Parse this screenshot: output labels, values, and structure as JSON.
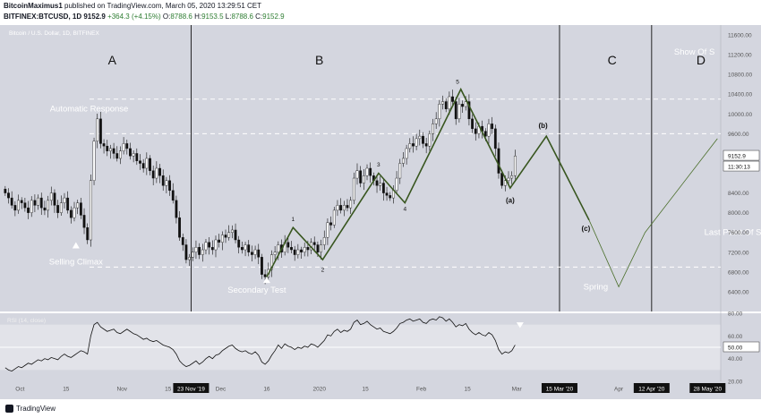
{
  "header": {
    "author": "BitcoinMaximus1",
    "published_text": "published on TradingView.com, March 05, 2020 13:29:51 CET",
    "symbol": "BITFINEX:BTCUSD, 1D",
    "last": "9152.9",
    "change": "+364.3 (+4.15%)",
    "o_label": "O:",
    "o_value": "8788.6",
    "h_label": "H:",
    "h_value": "9153.5",
    "l_label": "L:",
    "l_value": "8788.6",
    "c_label": "C:",
    "c_value": "9152.9"
  },
  "chart_title": "Bitcoin / U.S. Dollar, 1D, BITFINEX",
  "rsi_label": "RSI (14, close)",
  "footer": {
    "brand": "TradingView"
  },
  "colors": {
    "chart_bg": "#d4d6df",
    "wave_line": "#38561f",
    "candle": "#111111",
    "dashed": "#ffffff",
    "text_light": "#ffffff"
  },
  "chart_data": [
    {
      "type": "candlestick",
      "y_axis": {
        "min": 6000,
        "max": 11800,
        "ticks": [
          6400,
          6800,
          7200,
          7600,
          8000,
          8400,
          9200,
          9600,
          10000,
          10400,
          10800,
          11200,
          11600
        ],
        "tick_labels": [
          "6400.00",
          "6800.00",
          "7200.00",
          "7600.00",
          "8000.00",
          "8400.00",
          "9200.00",
          "9600.00",
          "10000.00",
          "10400.00",
          "10800.00",
          "11200.00",
          "11600.00"
        ]
      },
      "price_label": "9152.9",
      "time_label": "11:30:13",
      "x_ticks": [
        {
          "day": 5,
          "label": "Oct"
        },
        {
          "day": 19,
          "label": "15"
        },
        {
          "day": 36,
          "label": "Nov"
        },
        {
          "day": 50,
          "label": "15"
        },
        {
          "day": 57,
          "label": "23 Nov '19"
        },
        {
          "day": 66,
          "label": "Dec"
        },
        {
          "day": 80,
          "label": "16"
        },
        {
          "day": 96,
          "label": "2020"
        },
        {
          "day": 110,
          "label": "15"
        },
        {
          "day": 127,
          "label": "Feb"
        },
        {
          "day": 141,
          "label": "15"
        },
        {
          "day": 156,
          "label": "Mar"
        },
        {
          "day": 169,
          "label": "15 Mar '20"
        },
        {
          "day": 187,
          "label": "Apr"
        },
        {
          "day": 197,
          "label": "12 Apr '20"
        },
        {
          "day": 214,
          "label": "28 May '20"
        }
      ],
      "phase_labels": [
        {
          "label": "A",
          "day": 33,
          "price": 11000
        },
        {
          "label": "B",
          "day": 96,
          "price": 11000
        },
        {
          "label": "C",
          "day": 185,
          "price": 11000
        },
        {
          "label": "D",
          "day": 212,
          "price": 11000
        }
      ],
      "phase_dividers_day": [
        57,
        169,
        197
      ],
      "dashed_levels": [
        10300,
        9600,
        6900
      ],
      "annotations": [
        {
          "text": "Automatic Response",
          "day": 26,
          "price": 10050
        },
        {
          "text": "Selling Climax",
          "day": 22,
          "price": 6950
        },
        {
          "text": "Secondary Test",
          "day": 77,
          "price": 6380
        },
        {
          "text": "Spring",
          "day": 180,
          "price": 6440
        },
        {
          "text": "Last Point Of Sup",
          "day": 213,
          "price": 7550
        },
        {
          "text": "Show Of S",
          "day": 210,
          "price": 11200
        }
      ],
      "wave_path": [
        {
          "day": 80,
          "price": 6700
        },
        {
          "day": 88,
          "price": 7700
        },
        {
          "day": 97,
          "price": 7050
        },
        {
          "day": 114,
          "price": 8800
        },
        {
          "day": 122,
          "price": 8200
        },
        {
          "day": 139,
          "price": 10500
        },
        {
          "day": 154,
          "price": 8500
        },
        {
          "day": 165,
          "price": 9550
        },
        {
          "day": 178,
          "price": 7850
        }
      ],
      "wave_labels": [
        {
          "text": "1",
          "day": 88,
          "price": 7830
        },
        {
          "text": "2",
          "day": 97,
          "price": 6810
        },
        {
          "text": "3",
          "day": 114,
          "price": 8940
        },
        {
          "text": "4",
          "day": 122,
          "price": 8040
        },
        {
          "text": "5",
          "day": 138,
          "price": 10610
        },
        {
          "text": "(a)",
          "day": 154,
          "price": 8200
        },
        {
          "text": "(b)",
          "day": 164,
          "price": 9720
        },
        {
          "text": "(c)",
          "day": 177,
          "price": 7630
        }
      ],
      "projection_path": [
        {
          "day": 178,
          "price": 7850
        },
        {
          "day": 187,
          "price": 6500
        },
        {
          "day": 195,
          "price": 7600
        },
        {
          "day": 217,
          "price": 9500
        }
      ],
      "closes": [
        8400,
        8300,
        8150,
        8050,
        8250,
        8200,
        8100,
        8000,
        8250,
        8150,
        8300,
        8100,
        8050,
        8250,
        8400,
        8150,
        8000,
        8200,
        8300,
        8050,
        7900,
        8100,
        8200,
        7950,
        7700,
        7450,
        8650,
        9450,
        9900,
        9400,
        9350,
        9250,
        9300,
        9200,
        9100,
        9250,
        9400,
        9300,
        9150,
        9200,
        9050,
        9000,
        8900,
        9100,
        8850,
        8700,
        8900,
        8750,
        8550,
        8650,
        8450,
        8250,
        7900,
        7500,
        7350,
        7050,
        7100,
        7200,
        7300,
        7150,
        7250,
        7400,
        7300,
        7250,
        7450,
        7400,
        7550,
        7500,
        7600,
        7650,
        7450,
        7300,
        7250,
        7350,
        7200,
        7150,
        7250,
        7100,
        6750,
        6700,
        6850,
        7150,
        7200,
        7350,
        7200,
        7400,
        7300,
        7250,
        7150,
        7250,
        7200,
        7300,
        7250,
        7400,
        7350,
        7200,
        7350,
        7500,
        7800,
        7750,
        8050,
        8150,
        8050,
        8150,
        8100,
        8250,
        8700,
        8850,
        8600,
        8750,
        8900,
        8750,
        8650,
        8550,
        8600,
        8400,
        8350,
        8300,
        8450,
        8700,
        9000,
        9100,
        9300,
        9400,
        9350,
        9500,
        9550,
        9400,
        9350,
        9600,
        9800,
        9900,
        10200,
        10250,
        10100,
        10350,
        10250,
        9900,
        10200,
        10150,
        10250,
        9900,
        9700,
        9600,
        9750,
        9650,
        9550,
        9800,
        9700,
        9300,
        8800,
        8550,
        8650,
        8700,
        8750,
        9150
      ],
      "rsi": {
        "min": 20,
        "max": 80,
        "ticks": [
          20,
          40,
          50,
          60,
          80
        ],
        "tick_labels": [
          "20.00",
          "40.00",
          "50.00",
          "60.00",
          "80.00"
        ],
        "level_label": "50.00",
        "band": [
          30,
          70
        ],
        "values": [
          32,
          30,
          29,
          31,
          33,
          32,
          34,
          36,
          35,
          37,
          39,
          38,
          40,
          39,
          41,
          40,
          39,
          42,
          44,
          42,
          41,
          43,
          45,
          47,
          46,
          44,
          60,
          70,
          72,
          68,
          66,
          64,
          65,
          66,
          63,
          62,
          64,
          66,
          64,
          62,
          61,
          59,
          57,
          58,
          56,
          55,
          56,
          54,
          52,
          51,
          50,
          48,
          44,
          38,
          35,
          33,
          34,
          36,
          38,
          35,
          37,
          40,
          42,
          40,
          43,
          44,
          47,
          49,
          51,
          52,
          49,
          47,
          46,
          47,
          45,
          44,
          46,
          43,
          37,
          35,
          38,
          43,
          47,
          52,
          49,
          53,
          51,
          50,
          48,
          50,
          49,
          51,
          50,
          53,
          52,
          50,
          53,
          56,
          61,
          60,
          64,
          66,
          63,
          65,
          64,
          66,
          72,
          74,
          70,
          71,
          73,
          70,
          68,
          66,
          67,
          64,
          63,
          62,
          64,
          67,
          71,
          72,
          74,
          75,
          73,
          74,
          75,
          72,
          71,
          74,
          75,
          74,
          77,
          76,
          73,
          75,
          72,
          68,
          70,
          69,
          71,
          66,
          63,
          61,
          63,
          61,
          60,
          63,
          61,
          56,
          48,
          44,
          46,
          45,
          47,
          52
        ]
      }
    }
  ]
}
